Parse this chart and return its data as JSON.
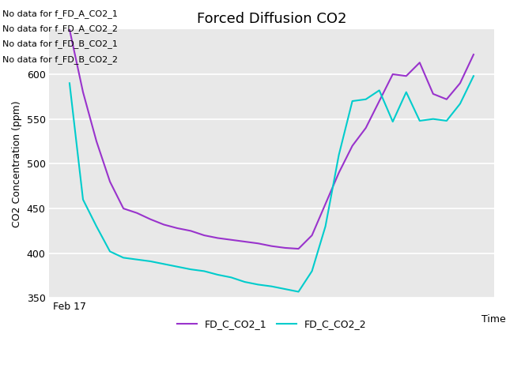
{
  "title": "Forced Diffusion CO2",
  "xlabel": "Time",
  "ylabel": "CO2 Concentration (ppm)",
  "ylim": [
    350,
    650
  ],
  "yticks": [
    350,
    400,
    450,
    500,
    550,
    600
  ],
  "xtick_labels": [
    "Feb 17"
  ],
  "legend_labels": [
    "FD_C_CO2_1",
    "FD_C_CO2_2"
  ],
  "line1_color": "#9933cc",
  "line2_color": "#00cccc",
  "line1_style": "-",
  "line2_style": "-",
  "background_color": "#e8e8e8",
  "no_data_lines": [
    "No data for f_FD_A_CO2_1",
    "No data for f_FD_A_CO2_2",
    "No data for f_FD_B_CO2_1",
    "No data for f_FD_B_CO2_2"
  ],
  "line1_x": [
    0,
    1,
    2,
    3,
    4,
    5,
    6,
    7,
    8,
    9,
    10,
    11,
    12,
    13,
    14,
    15,
    16,
    17,
    18,
    19,
    20,
    21,
    22,
    23,
    24,
    25,
    26,
    27,
    28,
    29,
    30
  ],
  "line1_y": [
    650,
    580,
    525,
    480,
    450,
    445,
    438,
    432,
    428,
    425,
    420,
    417,
    415,
    413,
    411,
    408,
    406,
    405,
    420,
    455,
    490,
    520,
    540,
    570,
    600,
    598,
    613,
    578,
    572,
    590,
    622
  ],
  "line2_x": [
    0,
    1,
    2,
    3,
    4,
    5,
    6,
    7,
    8,
    9,
    10,
    11,
    12,
    13,
    14,
    15,
    16,
    17,
    18,
    19,
    20,
    21,
    22,
    23,
    24,
    25,
    26,
    27,
    28,
    29,
    30
  ],
  "line2_y": [
    590,
    460,
    430,
    402,
    395,
    393,
    391,
    388,
    385,
    382,
    380,
    376,
    373,
    368,
    365,
    363,
    360,
    357,
    380,
    430,
    510,
    570,
    572,
    582,
    547,
    580,
    548,
    550,
    548,
    567,
    598
  ],
  "title_fontsize": 13,
  "label_fontsize": 9,
  "tick_fontsize": 9,
  "legend_fontsize": 9,
  "nodata_fontsize": 8,
  "linewidth": 1.5
}
